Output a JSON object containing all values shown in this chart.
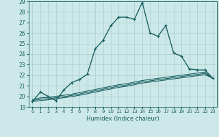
{
  "xlabel": "Humidex (Indice chaleur)",
  "xlim": [
    -0.5,
    23.5
  ],
  "ylim": [
    19,
    29
  ],
  "yticks": [
    19,
    20,
    21,
    22,
    23,
    24,
    25,
    26,
    27,
    28,
    29
  ],
  "xticks": [
    0,
    1,
    2,
    3,
    4,
    5,
    6,
    7,
    8,
    9,
    10,
    11,
    12,
    13,
    14,
    15,
    16,
    17,
    18,
    19,
    20,
    21,
    22,
    23
  ],
  "bg_color": "#cce8e8",
  "grid_color": "#aacccc",
  "line_color": "#1a6060",
  "lines": [
    {
      "x": [
        0,
        1,
        2,
        3,
        4,
        5,
        6,
        7,
        8,
        9,
        10,
        11,
        12,
        13,
        14,
        15,
        16,
        17,
        18,
        19,
        20,
        21,
        22,
        23
      ],
      "y": [
        19.5,
        20.4,
        20.0,
        19.6,
        20.6,
        21.3,
        21.6,
        22.1,
        24.5,
        25.3,
        26.7,
        27.5,
        27.5,
        27.3,
        28.9,
        26.0,
        25.7,
        26.7,
        24.1,
        23.8,
        22.6,
        22.5,
        22.5,
        21.7
      ],
      "marker": "+",
      "lw": 1.0
    },
    {
      "x": [
        0,
        1,
        2,
        3,
        4,
        5,
        6,
        7,
        8,
        9,
        10,
        11,
        12,
        13,
        14,
        15,
        16,
        17,
        18,
        19,
        20,
        21,
        22,
        23
      ],
      "y": [
        19.7,
        19.85,
        19.9,
        20.0,
        20.1,
        20.2,
        20.35,
        20.5,
        20.65,
        20.8,
        20.95,
        21.1,
        21.2,
        21.35,
        21.5,
        21.6,
        21.7,
        21.8,
        21.9,
        22.0,
        22.1,
        22.2,
        22.3,
        21.7
      ],
      "marker": null,
      "lw": 0.8
    },
    {
      "x": [
        0,
        1,
        2,
        3,
        4,
        5,
        6,
        7,
        8,
        9,
        10,
        11,
        12,
        13,
        14,
        15,
        16,
        17,
        18,
        19,
        20,
        21,
        22,
        23
      ],
      "y": [
        19.6,
        19.72,
        19.78,
        19.87,
        19.97,
        20.08,
        20.22,
        20.37,
        20.52,
        20.67,
        20.82,
        20.97,
        21.07,
        21.22,
        21.37,
        21.47,
        21.57,
        21.67,
        21.77,
        21.87,
        21.97,
        22.07,
        22.17,
        21.7
      ],
      "marker": null,
      "lw": 0.8
    },
    {
      "x": [
        0,
        1,
        2,
        3,
        4,
        5,
        6,
        7,
        8,
        9,
        10,
        11,
        12,
        13,
        14,
        15,
        16,
        17,
        18,
        19,
        20,
        21,
        22,
        23
      ],
      "y": [
        19.5,
        19.6,
        19.67,
        19.77,
        19.87,
        19.97,
        20.1,
        20.25,
        20.4,
        20.55,
        20.7,
        20.85,
        20.95,
        21.1,
        21.25,
        21.35,
        21.45,
        21.55,
        21.65,
        21.75,
        21.85,
        21.95,
        22.05,
        21.7
      ],
      "marker": null,
      "lw": 0.8
    }
  ]
}
